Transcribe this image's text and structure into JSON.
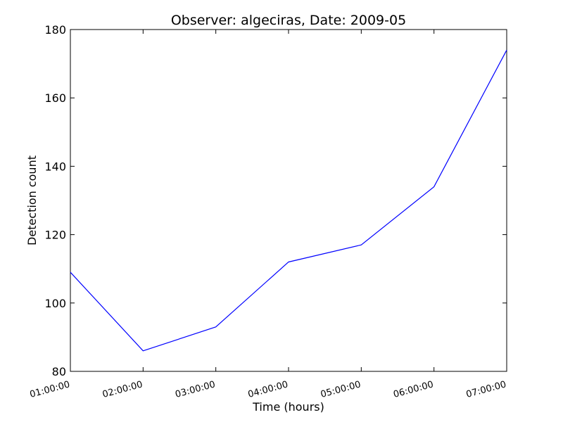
{
  "chart_data": {
    "type": "line",
    "title": "Observer: algeciras, Date: 2009-05",
    "xlabel": "Time (hours)",
    "ylabel": "Detection count",
    "categories": [
      "01:00:00",
      "02:00:00",
      "03:00:00",
      "04:00:00",
      "05:00:00",
      "06:00:00",
      "07:00:00"
    ],
    "series": [
      {
        "values": [
          109,
          86,
          93,
          112,
          117,
          134,
          174
        ],
        "color": "#0000ff"
      }
    ],
    "ylim": [
      80,
      180
    ],
    "yticks": [
      80,
      100,
      120,
      140,
      160,
      180
    ],
    "grid": false,
    "legend": "none"
  }
}
